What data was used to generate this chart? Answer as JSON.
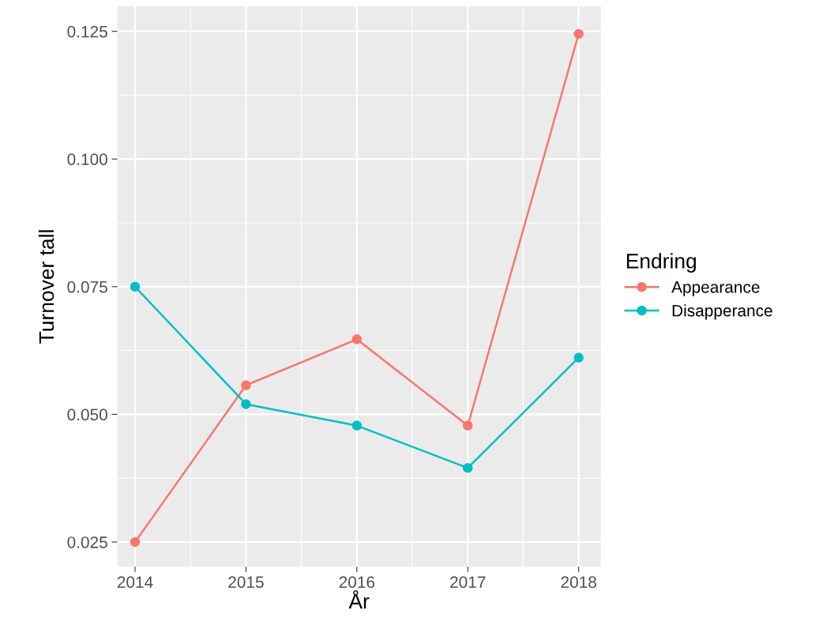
{
  "chart_data": {
    "type": "line",
    "xlabel": "År",
    "ylabel": "Turnover tall",
    "legend_title": "Endring",
    "x": [
      2014,
      2015,
      2016,
      2017,
      2018
    ],
    "series": [
      {
        "name": "Appearance",
        "color": "#f8766d",
        "values": [
          0.025,
          0.0557,
          0.0647,
          0.0478,
          0.1245
        ]
      },
      {
        "name": "Disapperance",
        "color": "#00bfc4",
        "values": [
          0.075,
          0.052,
          0.0478,
          0.0395,
          0.0611
        ]
      }
    ],
    "xlim": [
      2013.84,
      2018.2
    ],
    "xticks": [
      2014,
      2015,
      2016,
      2017,
      2018
    ],
    "ylim": [
      0.0202,
      0.1299
    ],
    "yticks": [
      {
        "value": 0.025,
        "label": "0.025"
      },
      {
        "value": 0.05,
        "label": "0.050"
      },
      {
        "value": 0.075,
        "label": "0.075"
      },
      {
        "value": 0.1,
        "label": "0.100"
      },
      {
        "value": 0.125,
        "label": "0.125"
      }
    ],
    "grid": true,
    "legend": "right",
    "marker": "circle",
    "line_style": "solid"
  }
}
